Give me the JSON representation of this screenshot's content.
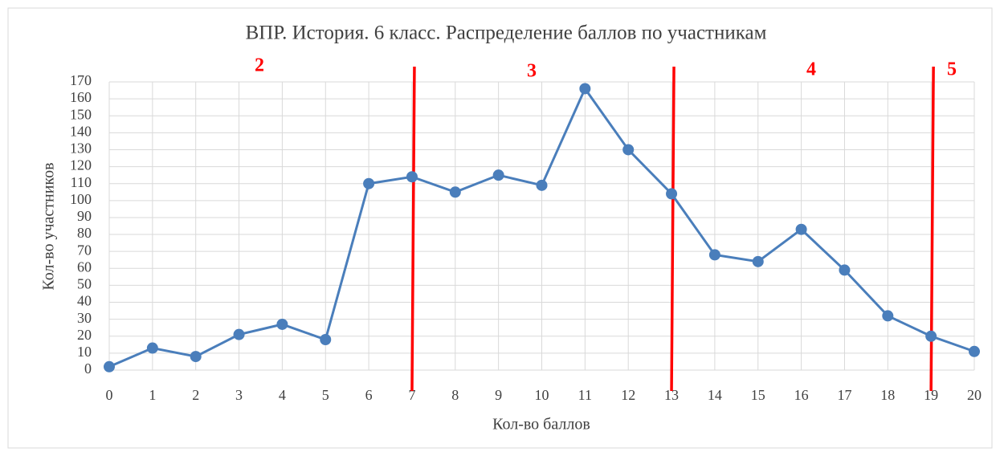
{
  "chart_data": {
    "type": "line",
    "title": "ВПР. История. 6 класс. Распределение баллов по участникам",
    "x_label": "Кол-во баллов",
    "y_label": "Кол-во участников",
    "x": [
      0,
      1,
      2,
      3,
      4,
      5,
      6,
      7,
      8,
      9,
      10,
      11,
      12,
      13,
      14,
      15,
      16,
      17,
      18,
      19,
      20
    ],
    "series": [
      {
        "name": "Кол-во участников",
        "color": "#4a7ebb",
        "values": [
          2,
          13,
          8,
          21,
          27,
          18,
          110,
          114,
          105,
          115,
          109,
          166,
          130,
          104,
          68,
          64,
          83,
          59,
          32,
          20,
          11
        ]
      }
    ],
    "xlim": [
      0,
      20
    ],
    "xticks": [
      0,
      1,
      2,
      3,
      4,
      5,
      6,
      7,
      8,
      9,
      10,
      11,
      12,
      13,
      14,
      15,
      16,
      17,
      18,
      19,
      20
    ],
    "ylim": [
      0,
      170
    ],
    "yticks": [
      0,
      10,
      20,
      30,
      40,
      50,
      60,
      70,
      80,
      90,
      100,
      110,
      120,
      130,
      140,
      150,
      160,
      170
    ],
    "grid": true,
    "thresholds": [
      7,
      13,
      19
    ],
    "threshold_color": "#ff0000",
    "grades": [
      "2",
      "3",
      "4",
      "5"
    ]
  }
}
